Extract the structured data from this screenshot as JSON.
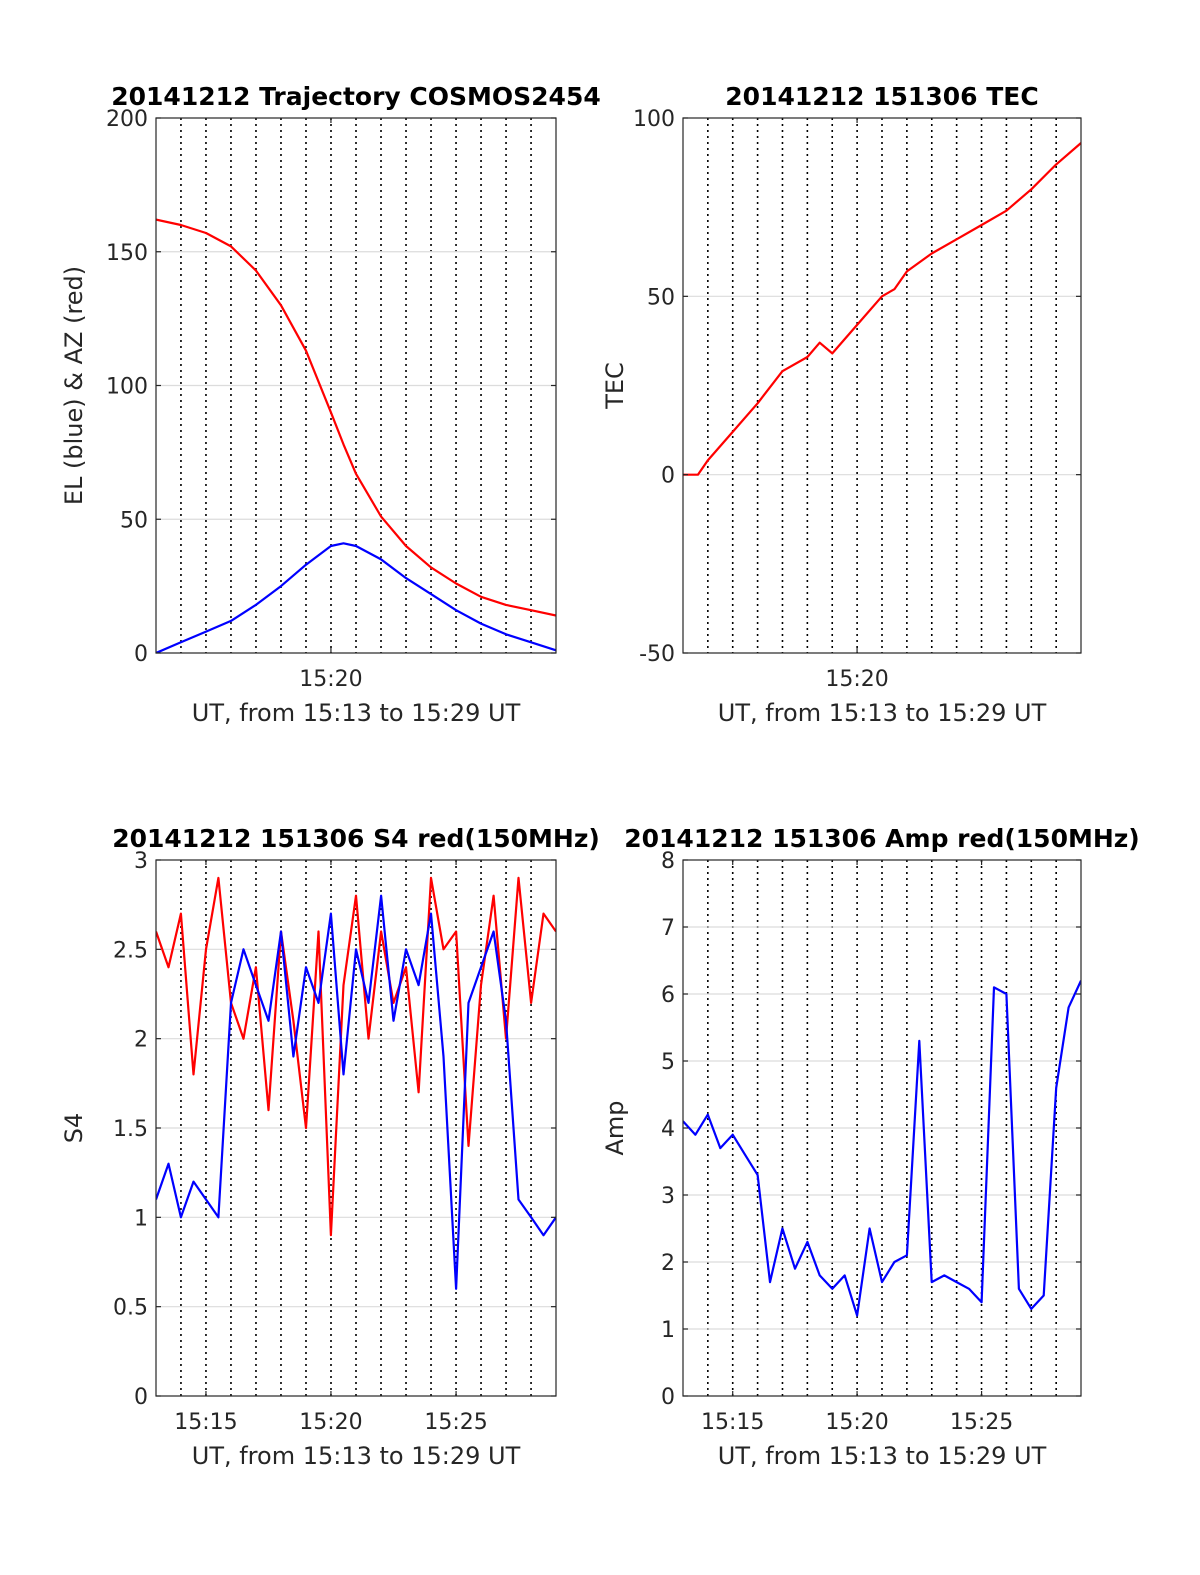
{
  "chart_data": [
    {
      "type": "line",
      "title": "20141212 Trajectory COSMOS2454",
      "xlabel": "UT, from 15:13 to 15:29 UT",
      "ylabel": "EL (blue) & AZ (red)",
      "xlim": [
        15.2167,
        15.4833
      ],
      "ylim": [
        0,
        200
      ],
      "yticks": [
        0,
        50,
        100,
        150,
        200
      ],
      "xticks": [
        {
          "value": 15.3333,
          "label": "15:20"
        }
      ],
      "grid": true,
      "series": [
        {
          "color": "#ff0000",
          "x": [
            15.2167,
            15.2333,
            15.25,
            15.2667,
            15.2833,
            15.3,
            15.3167,
            15.3333,
            15.3417,
            15.35,
            15.3667,
            15.3833,
            15.4,
            15.4167,
            15.4333,
            15.45,
            15.4667,
            15.4833
          ],
          "y": [
            162,
            160,
            157,
            152,
            143,
            130,
            113,
            90,
            78,
            67,
            51,
            40,
            32,
            26,
            21,
            18,
            16,
            14
          ]
        },
        {
          "color": "#0000ff",
          "x": [
            15.2167,
            15.2333,
            15.25,
            15.2667,
            15.2833,
            15.3,
            15.3167,
            15.3333,
            15.3417,
            15.35,
            15.3667,
            15.3833,
            15.4,
            15.4167,
            15.4333,
            15.45,
            15.4667,
            15.4833
          ],
          "y": [
            0,
            4,
            8,
            12,
            18,
            25,
            33,
            40,
            41,
            40,
            35,
            28,
            22,
            16,
            11,
            7,
            4,
            1
          ]
        }
      ]
    },
    {
      "type": "line",
      "title": "20141212 151306 TEC",
      "xlabel": "UT, from 15:13 to 15:29 UT",
      "ylabel": "TEC",
      "xlim": [
        15.2167,
        15.4833
      ],
      "ylim": [
        -50,
        100
      ],
      "yticks": [
        -50,
        0,
        50,
        100
      ],
      "xticks": [
        {
          "value": 15.3333,
          "label": "15:20"
        }
      ],
      "grid": true,
      "series": [
        {
          "color": "#ff0000",
          "x": [
            15.2167,
            15.2267,
            15.2333,
            15.25,
            15.2667,
            15.2833,
            15.3,
            15.3083,
            15.3167,
            15.3333,
            15.35,
            15.3583,
            15.3667,
            15.3833,
            15.4,
            15.4167,
            15.4333,
            15.45,
            15.4667,
            15.4833
          ],
          "y": [
            0,
            0,
            4,
            12,
            20,
            29,
            33,
            37,
            34,
            42,
            50,
            52,
            57,
            62,
            66,
            70,
            74,
            80,
            87,
            93
          ]
        }
      ]
    },
    {
      "type": "line",
      "title": "20141212 151306 S4 red(150MHz)",
      "xlabel": "UT, from 15:13 to 15:29 UT",
      "ylabel": "S4",
      "xlim": [
        15.2167,
        15.4833
      ],
      "ylim": [
        0,
        3
      ],
      "yticks": [
        0,
        0.5,
        1,
        1.5,
        2,
        2.5,
        3
      ],
      "xticks": [
        {
          "value": 15.25,
          "label": "15:15"
        },
        {
          "value": 15.3333,
          "label": "15:20"
        },
        {
          "value": 15.4167,
          "label": "15:25"
        }
      ],
      "grid": true,
      "series": [
        {
          "color": "#ff0000",
          "x": [
            15.2167,
            15.225,
            15.2333,
            15.2417,
            15.25,
            15.2583,
            15.2667,
            15.275,
            15.2833,
            15.2917,
            15.3,
            15.3083,
            15.3167,
            15.325,
            15.3333,
            15.3417,
            15.35,
            15.3583,
            15.3667,
            15.375,
            15.3833,
            15.3917,
            15.4,
            15.4083,
            15.4167,
            15.425,
            15.4333,
            15.4417,
            15.45,
            15.4583,
            15.4667,
            15.475,
            15.4833
          ],
          "y": [
            2.6,
            2.4,
            2.7,
            1.8,
            2.5,
            2.9,
            2.2,
            2.0,
            2.4,
            1.6,
            2.6,
            2.1,
            1.5,
            2.6,
            0.9,
            2.3,
            2.8,
            2.0,
            2.6,
            2.2,
            2.4,
            1.7,
            2.9,
            2.5,
            2.6,
            1.4,
            2.3,
            2.8,
            2.0,
            2.9,
            2.2,
            2.7,
            2.6
          ]
        },
        {
          "color": "#0000ff",
          "x": [
            15.2167,
            15.225,
            15.2333,
            15.2417,
            15.25,
            15.2583,
            15.2667,
            15.275,
            15.2833,
            15.2917,
            15.3,
            15.3083,
            15.3167,
            15.325,
            15.3333,
            15.3417,
            15.35,
            15.3583,
            15.3667,
            15.375,
            15.3833,
            15.3917,
            15.4,
            15.4083,
            15.4167,
            15.425,
            15.4333,
            15.4417,
            15.45,
            15.4583,
            15.4667,
            15.475,
            15.4833
          ],
          "y": [
            1.1,
            1.3,
            1.0,
            1.2,
            1.1,
            1.0,
            2.2,
            2.5,
            2.3,
            2.1,
            2.6,
            1.9,
            2.4,
            2.2,
            2.7,
            1.8,
            2.5,
            2.2,
            2.8,
            2.1,
            2.5,
            2.3,
            2.7,
            1.9,
            0.6,
            2.2,
            2.4,
            2.6,
            2.1,
            1.1,
            1.0,
            0.9,
            1.0
          ]
        }
      ]
    },
    {
      "type": "line",
      "title": "20141212 151306 Amp red(150MHz)",
      "xlabel": "UT, from 15:13 to 15:29 UT",
      "ylabel": "Amp",
      "xlim": [
        15.2167,
        15.4833
      ],
      "ylim": [
        0,
        8
      ],
      "yticks": [
        0,
        1,
        2,
        3,
        4,
        5,
        6,
        7,
        8
      ],
      "xticks": [
        {
          "value": 15.25,
          "label": "15:15"
        },
        {
          "value": 15.3333,
          "label": "15:20"
        },
        {
          "value": 15.4167,
          "label": "15:25"
        }
      ],
      "grid": true,
      "series": [
        {
          "color": "#0000ff",
          "x": [
            15.2167,
            15.225,
            15.2333,
            15.2417,
            15.25,
            15.2583,
            15.2667,
            15.275,
            15.2833,
            15.2917,
            15.3,
            15.3083,
            15.3167,
            15.325,
            15.3333,
            15.3417,
            15.35,
            15.3583,
            15.3667,
            15.375,
            15.3833,
            15.3917,
            15.4,
            15.4083,
            15.4167,
            15.425,
            15.4333,
            15.4417,
            15.45,
            15.4583,
            15.4667,
            15.475,
            15.4833
          ],
          "y": [
            4.1,
            3.9,
            4.2,
            3.7,
            3.9,
            3.6,
            3.3,
            1.7,
            2.5,
            1.9,
            2.3,
            1.8,
            1.6,
            1.8,
            1.2,
            2.5,
            1.7,
            2.0,
            2.1,
            5.3,
            1.7,
            1.8,
            1.7,
            1.6,
            1.4,
            6.1,
            6.0,
            1.6,
            1.3,
            1.5,
            4.6,
            5.8,
            6.2
          ]
        }
      ]
    }
  ]
}
